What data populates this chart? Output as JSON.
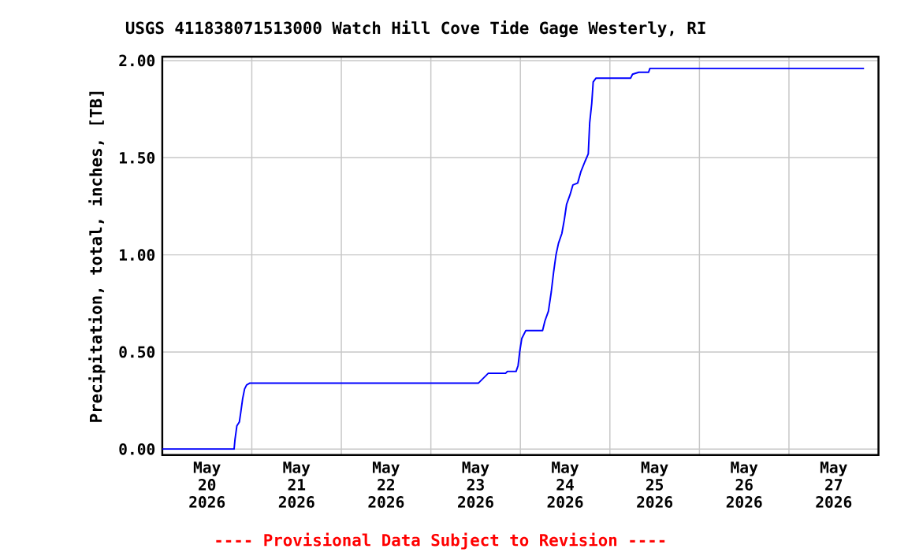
{
  "chart_data": {
    "type": "line",
    "title": "USGS 411838071513000 Watch Hill Cove Tide Gage Westerly, RI",
    "ylabel": "Precipitation, total, inches, [TB]",
    "annotations": [
      "---- Provisional Data Subject to Revision ----"
    ],
    "xlim": [
      "2026-05-20",
      "2026-05-28"
    ],
    "xticks": [
      {
        "value": "2026-05-20",
        "label": null
      },
      {
        "value": "2026-05-21",
        "label": null
      },
      {
        "value": "2026-05-22",
        "label": null
      },
      {
        "value": "2026-05-23",
        "label": null
      },
      {
        "value": "2026-05-24",
        "label": null
      },
      {
        "value": "2026-05-25",
        "label": null
      },
      {
        "value": "2026-05-26",
        "label": null
      },
      {
        "value": "2026-05-27",
        "label": null
      },
      {
        "value": "2026-05-28",
        "label": null
      },
      {
        "value": "2026-05-20T12:00",
        "label": "May 20 2026"
      },
      {
        "value": "2026-05-21T12:00",
        "label": "May 21 2026"
      },
      {
        "value": "2026-05-22T12:00",
        "label": "May 22 2026"
      },
      {
        "value": "2026-05-23T12:00",
        "label": "May 23 2026"
      },
      {
        "value": "2026-05-24T12:00",
        "label": "May 24 2026"
      },
      {
        "value": "2026-05-25T12:00",
        "label": "May 25 2026"
      },
      {
        "value": "2026-05-26T12:00",
        "label": "May 26 2026"
      },
      {
        "value": "2026-05-27T12:00",
        "label": "May 27 2026"
      }
    ],
    "ylim": [
      -0.03,
      2.02
    ],
    "yticks": [
      {
        "value": 0,
        "label": "0.00"
      },
      {
        "value": 0.5,
        "label": "0.50"
      },
      {
        "value": 1,
        "label": "1.00"
      },
      {
        "value": 1.5,
        "label": "1.50"
      },
      {
        "value": 2,
        "label": "2.00"
      }
    ],
    "grid": true,
    "line_style": "solid",
    "x": [
      "2026-05-20T00:00",
      "2026-05-20T19:15",
      "2026-05-20T19:30",
      "2026-05-20T20:00",
      "2026-05-20T20:40",
      "2026-05-20T21:03",
      "2026-05-20T21:33",
      "2026-05-20T22:04",
      "2026-05-20T22:36",
      "2026-05-20T23:30",
      "2026-05-23T12:46",
      "2026-05-23T15:22",
      "2026-05-23T20:01",
      "2026-05-23T20:31",
      "2026-05-23T22:51",
      "2026-05-23T23:23",
      "2026-05-23T23:53",
      "2026-05-24T00:23",
      "2026-05-24T01:26",
      "2026-05-24T05:57",
      "2026-05-24T06:35",
      "2026-05-24T07:31",
      "2026-05-24T08:17",
      "2026-05-24T08:54",
      "2026-05-24T09:33",
      "2026-05-24T10:13",
      "2026-05-24T11:07",
      "2026-05-24T11:46",
      "2026-05-24T12:23",
      "2026-05-24T13:19",
      "2026-05-24T14:05",
      "2026-05-24T15:22",
      "2026-05-24T16:15",
      "2026-05-24T17:18",
      "2026-05-24T18:12",
      "2026-05-24T18:35",
      "2026-05-24T19:08",
      "2026-05-24T19:31",
      "2026-05-24T20:17",
      "2026-05-25T05:34",
      "2026-05-25T06:04",
      "2026-05-25T07:45",
      "2026-05-25T10:21",
      "2026-05-25T10:44",
      "2026-05-27T20:08"
    ],
    "series": [
      {
        "color": "#0000ff",
        "values": [
          0.0,
          0.0,
          0.05,
          0.12,
          0.14,
          0.19,
          0.26,
          0.31,
          0.33,
          0.34,
          0.34,
          0.39,
          0.39,
          0.4,
          0.4,
          0.43,
          0.51,
          0.57,
          0.61,
          0.61,
          0.66,
          0.71,
          0.81,
          0.91,
          1.0,
          1.06,
          1.11,
          1.18,
          1.26,
          1.31,
          1.36,
          1.37,
          1.43,
          1.48,
          1.52,
          1.68,
          1.78,
          1.89,
          1.91,
          1.91,
          1.93,
          1.94,
          1.94,
          1.96,
          1.96
        ]
      }
    ]
  }
}
